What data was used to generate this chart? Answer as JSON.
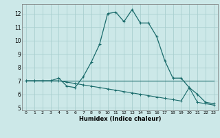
{
  "xlabel": "Humidex (Indice chaleur)",
  "xlim": [
    -0.5,
    23.5
  ],
  "ylim": [
    4.8,
    12.7
  ],
  "yticks": [
    5,
    6,
    7,
    8,
    9,
    10,
    11,
    12
  ],
  "xticks": [
    0,
    1,
    2,
    3,
    4,
    5,
    6,
    7,
    8,
    9,
    10,
    11,
    12,
    13,
    14,
    15,
    16,
    17,
    18,
    19,
    20,
    21,
    22,
    23
  ],
  "bg_color": "#cce8e8",
  "line_color": "#1a6b6b",
  "grid_color": "#aacfcf",
  "line1_x": [
    0,
    1,
    2,
    3,
    4,
    5,
    6,
    7,
    8,
    9,
    10,
    11,
    12,
    13,
    14,
    15,
    16,
    17,
    18,
    19,
    20,
    21,
    22,
    23
  ],
  "line1_y": [
    7.0,
    7.0,
    7.0,
    7.0,
    7.2,
    6.6,
    6.5,
    7.3,
    8.4,
    9.7,
    12.0,
    12.1,
    11.4,
    12.3,
    11.3,
    11.3,
    10.3,
    8.5,
    7.2,
    7.2,
    6.5,
    6.0,
    5.4,
    5.3
  ],
  "line2_x": [
    0,
    1,
    2,
    3,
    4,
    5,
    6,
    7,
    8,
    9,
    10,
    11,
    12,
    13,
    14,
    15,
    16,
    17,
    18,
    19,
    20,
    21,
    22,
    23
  ],
  "line2_y": [
    7.0,
    7.0,
    7.0,
    7.0,
    7.0,
    7.0,
    7.0,
    7.0,
    7.0,
    7.0,
    7.0,
    7.0,
    7.0,
    7.0,
    7.0,
    7.0,
    7.0,
    7.0,
    7.0,
    7.0,
    7.0,
    7.0,
    7.0,
    7.0
  ],
  "line3_x": [
    0,
    1,
    2,
    3,
    4,
    5,
    6,
    7,
    8,
    9,
    10,
    11,
    12,
    13,
    14,
    15,
    16,
    17,
    18,
    19,
    20,
    21,
    22,
    23
  ],
  "line3_y": [
    7.0,
    7.0,
    7.0,
    7.0,
    7.0,
    6.9,
    6.8,
    6.7,
    6.6,
    6.5,
    6.4,
    6.3,
    6.2,
    6.1,
    6.0,
    5.9,
    5.8,
    5.7,
    5.6,
    5.5,
    6.5,
    5.4,
    5.3,
    5.2
  ]
}
